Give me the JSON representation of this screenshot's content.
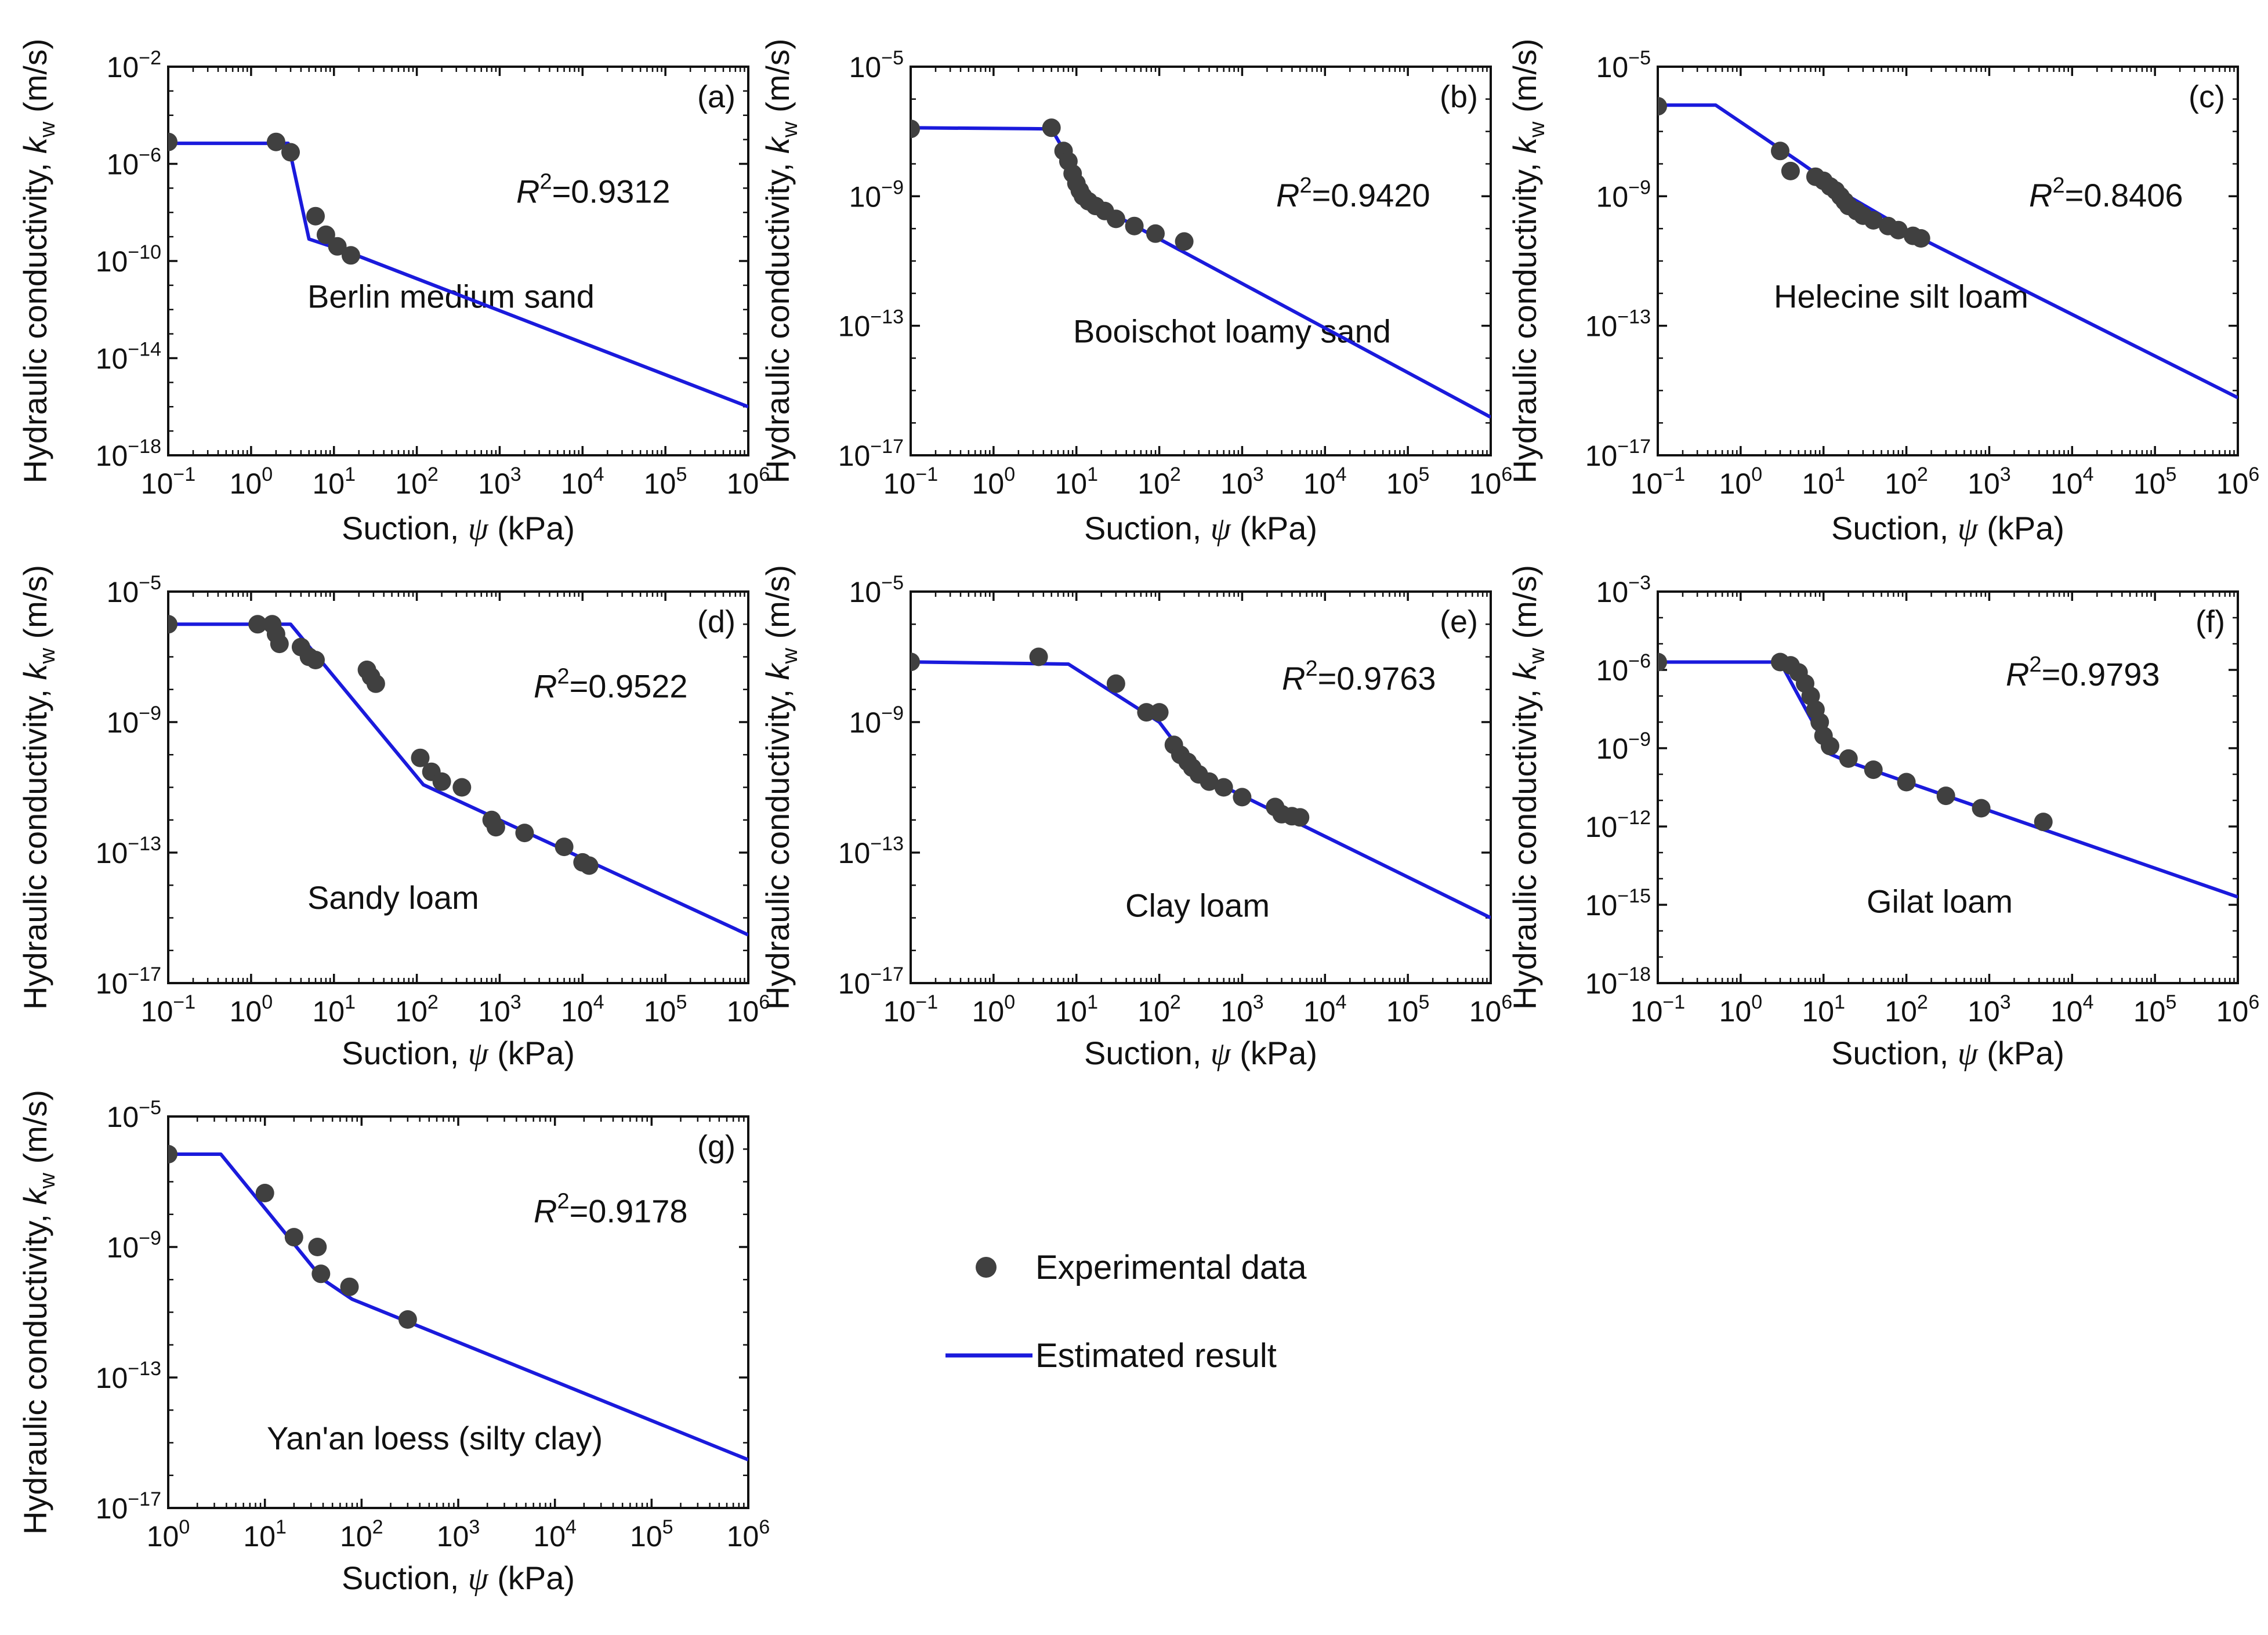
{
  "colors": {
    "points": "#404040",
    "line": "#1a1adc",
    "axis": "#111111",
    "background": "#ffffff"
  },
  "legend": {
    "points_label": "Experimental data",
    "line_label": "Estimated result",
    "position": "right of panel (g)"
  },
  "axes_text": {
    "x_label_prefix": "Suction,",
    "x_label_symbol": "ψ",
    "x_label_unit": "(kPa)",
    "y_label_prefix": "Hydraulic conductivity,",
    "y_label_symbol": "k",
    "y_label_sub": "w",
    "y_label_unit": "(m/s)",
    "r2_symbol": "R",
    "r2_sup": "2"
  },
  "chart_data": [
    {
      "type": "scatter",
      "panel": "(a)",
      "title": "Berlin medium sand",
      "r2": "0.9312",
      "x_scale": "log",
      "y_scale": "log",
      "xlim_exp": [
        -1,
        6
      ],
      "ylim_exp": [
        -18,
        -2
      ],
      "x_ticks_exp": [
        -1,
        0,
        1,
        2,
        3,
        4,
        5,
        6
      ],
      "y_ticks_exp": [
        -18,
        -14,
        -10,
        -6,
        -2
      ],
      "series": [
        {
          "name": "Experimental data",
          "kind": "points",
          "points": [
            [
              0.1,
              8e-06
            ],
            [
              2.0,
              8e-06
            ],
            [
              3.0,
              3e-06
            ],
            [
              6.0,
              7e-09
            ],
            [
              8.0,
              1.2e-09
            ],
            [
              11.0,
              4e-10
            ],
            [
              16.0,
              1.7e-10
            ]
          ]
        },
        {
          "name": "Estimated result",
          "kind": "line",
          "points": [
            [
              0.1,
              7e-06
            ],
            [
              2.8,
              7e-06
            ],
            [
              5.0,
              8e-10
            ],
            [
              14.0,
              2.5e-10
            ],
            [
              1000000,
              1e-16
            ]
          ]
        }
      ]
    },
    {
      "type": "scatter",
      "panel": "(b)",
      "title": "Booischot loamy sand",
      "r2": "0.9420",
      "x_scale": "log",
      "y_scale": "log",
      "xlim_exp": [
        -1,
        6
      ],
      "ylim_exp": [
        -17,
        -5
      ],
      "x_ticks_exp": [
        -1,
        0,
        1,
        2,
        3,
        4,
        5,
        6
      ],
      "y_ticks_exp": [
        -17,
        -13,
        -9,
        -5
      ],
      "series": [
        {
          "name": "Experimental data",
          "kind": "points",
          "points": [
            [
              0.1,
              1.2e-07
            ],
            [
              5.0,
              1.3e-07
            ],
            [
              7.0,
              2.5e-08
            ],
            [
              8.0,
              1.2e-08
            ],
            [
              9.0,
              5e-09
            ],
            [
              10.0,
              2.5e-09
            ],
            [
              11.0,
              1.5e-09
            ],
            [
              12.0,
              1e-09
            ],
            [
              14.0,
              7e-10
            ],
            [
              17.0,
              5e-10
            ],
            [
              22.0,
              3.5e-10
            ],
            [
              30.0,
              2e-10
            ],
            [
              50.0,
              1.2e-10
            ],
            [
              90.0,
              7e-11
            ],
            [
              200.0,
              4e-11
            ]
          ]
        },
        {
          "name": "Estimated result",
          "kind": "line",
          "points": [
            [
              0.1,
              1.3e-07
            ],
            [
              5.0,
              1.2e-07
            ],
            [
              8.0,
              1.5e-08
            ],
            [
              15.0,
              1e-09
            ],
            [
              30.0,
              2.5e-10
            ],
            [
              1000000,
              1.5e-16
            ]
          ]
        }
      ]
    },
    {
      "type": "scatter",
      "panel": "(c)",
      "title": "Helecine silt loam",
      "r2": "0.8406",
      "x_scale": "log",
      "y_scale": "log",
      "xlim_exp": [
        -1,
        6
      ],
      "ylim_exp": [
        -17,
        -5
      ],
      "x_ticks_exp": [
        -1,
        0,
        1,
        2,
        3,
        4,
        5,
        6
      ],
      "y_ticks_exp": [
        -17,
        -13,
        -9,
        -5
      ],
      "series": [
        {
          "name": "Experimental data",
          "kind": "points",
          "points": [
            [
              0.1,
              6e-07
            ],
            [
              3.0,
              2.5e-08
            ],
            [
              4.0,
              6e-09
            ],
            [
              8.0,
              4e-09
            ],
            [
              10.0,
              3e-09
            ],
            [
              12.0,
              2e-09
            ],
            [
              14.0,
              1.5e-09
            ],
            [
              16.0,
              1e-09
            ],
            [
              18.0,
              7e-10
            ],
            [
              20.0,
              5e-10
            ],
            [
              25.0,
              3.5e-10
            ],
            [
              30.0,
              2.5e-10
            ],
            [
              40.0,
              1.8e-10
            ],
            [
              60.0,
              1.2e-10
            ],
            [
              80.0,
              9e-11
            ],
            [
              120.0,
              6e-11
            ],
            [
              150.0,
              5e-11
            ]
          ]
        },
        {
          "name": "Estimated result",
          "kind": "line",
          "points": [
            [
              0.1,
              6.5e-07
            ],
            [
              0.5,
              6.5e-07
            ],
            [
              5.0,
              1.2e-08
            ],
            [
              20.0,
              1e-09
            ],
            [
              150.0,
              5e-11
            ],
            [
              1000000,
              6e-16
            ]
          ]
        }
      ]
    },
    {
      "type": "scatter",
      "panel": "(d)",
      "title": "Sandy loam",
      "r2": "0.9522",
      "x_scale": "log",
      "y_scale": "log",
      "xlim_exp": [
        -1,
        6
      ],
      "ylim_exp": [
        -17,
        -5
      ],
      "x_ticks_exp": [
        -1,
        0,
        1,
        2,
        3,
        4,
        5,
        6
      ],
      "y_ticks_exp": [
        -17,
        -13,
        -9,
        -5
      ],
      "series": [
        {
          "name": "Experimental data",
          "kind": "points",
          "points": [
            [
              0.1,
              1e-06
            ],
            [
              1.2,
              1e-06
            ],
            [
              1.8,
              1e-06
            ],
            [
              2.0,
              5e-07
            ],
            [
              2.2,
              2.5e-07
            ],
            [
              4.0,
              2e-07
            ],
            [
              5.0,
              1e-07
            ],
            [
              6.0,
              8e-08
            ],
            [
              25.0,
              4e-08
            ],
            [
              28.0,
              2.5e-08
            ],
            [
              32.0,
              1.5e-08
            ],
            [
              110.0,
              8e-11
            ],
            [
              150.0,
              3e-11
            ],
            [
              200.0,
              1.5e-11
            ],
            [
              350.0,
              1e-11
            ],
            [
              800.0,
              1e-12
            ],
            [
              900.0,
              6e-13
            ],
            [
              2000.0,
              4e-13
            ],
            [
              6000.0,
              1.5e-13
            ],
            [
              10000.0,
              5e-14
            ],
            [
              12000.0,
              4e-14
            ]
          ]
        },
        {
          "name": "Estimated result",
          "kind": "line",
          "points": [
            [
              0.1,
              1e-06
            ],
            [
              3.0,
              1e-06
            ],
            [
              120.0,
              1.2e-11
            ],
            [
              1000000,
              3e-16
            ]
          ]
        }
      ]
    },
    {
      "type": "scatter",
      "panel": "(e)",
      "title": "Clay loam",
      "r2": "0.9763",
      "x_scale": "log",
      "y_scale": "log",
      "xlim_exp": [
        -1,
        6
      ],
      "ylim_exp": [
        -17,
        -5
      ],
      "x_ticks_exp": [
        -1,
        0,
        1,
        2,
        3,
        4,
        5,
        6
      ],
      "y_ticks_exp": [
        -17,
        -13,
        -9,
        -5
      ],
      "series": [
        {
          "name": "Experimental data",
          "kind": "points",
          "points": [
            [
              0.1,
              7e-08
            ],
            [
              3.5,
              1e-07
            ],
            [
              30.0,
              1.5e-08
            ],
            [
              70.0,
              2e-09
            ],
            [
              100.0,
              2e-09
            ],
            [
              150.0,
              2e-10
            ],
            [
              180.0,
              1e-10
            ],
            [
              220.0,
              6e-11
            ],
            [
              250.0,
              4e-11
            ],
            [
              300.0,
              2.5e-11
            ],
            [
              400.0,
              1.5e-11
            ],
            [
              600.0,
              1e-11
            ],
            [
              1000.0,
              5e-12
            ],
            [
              2500.0,
              2.5e-12
            ],
            [
              3000.0,
              1.5e-12
            ],
            [
              4000.0,
              1.3e-12
            ],
            [
              5000.0,
              1.2e-12
            ]
          ]
        },
        {
          "name": "Estimated result",
          "kind": "line",
          "points": [
            [
              0.1,
              7e-08
            ],
            [
              8.0,
              6e-08
            ],
            [
              100.0,
              1e-09
            ],
            [
              300.0,
              2.5e-11
            ],
            [
              1000000,
              1e-15
            ]
          ]
        }
      ]
    },
    {
      "type": "scatter",
      "panel": "(f)",
      "title": "Gilat loam",
      "r2": "0.9793",
      "x_scale": "log",
      "y_scale": "log",
      "xlim_exp": [
        -1,
        6
      ],
      "ylim_exp": [
        -18,
        -3
      ],
      "x_ticks_exp": [
        -1,
        0,
        1,
        2,
        3,
        4,
        5,
        6
      ],
      "y_ticks_exp": [
        -18,
        -15,
        -12,
        -9,
        -6,
        -3
      ],
      "series": [
        {
          "name": "Experimental data",
          "kind": "points",
          "points": [
            [
              0.1,
              2e-06
            ],
            [
              3.0,
              2e-06
            ],
            [
              4.0,
              1.5e-06
            ],
            [
              5.0,
              8e-07
            ],
            [
              6.0,
              3e-07
            ],
            [
              7.0,
              1e-07
            ],
            [
              8.0,
              3e-08
            ],
            [
              9.0,
              1e-08
            ],
            [
              10.0,
              3e-09
            ],
            [
              12.0,
              1.2e-09
            ],
            [
              20.0,
              4e-10
            ],
            [
              40.0,
              1.5e-10
            ],
            [
              100.0,
              5e-11
            ],
            [
              300.0,
              1.5e-11
            ],
            [
              800.0,
              5e-12
            ],
            [
              4500.0,
              1.5e-12
            ]
          ]
        },
        {
          "name": "Estimated result",
          "kind": "line",
          "points": [
            [
              0.1,
              2e-06
            ],
            [
              3.0,
              2e-06
            ],
            [
              12.0,
              6e-10
            ],
            [
              20.0,
              3e-10
            ],
            [
              1000000,
              2e-15
            ]
          ]
        }
      ]
    },
    {
      "type": "scatter",
      "panel": "(g)",
      "title": "Yan'an loess (silty clay)",
      "r2": "0.9178",
      "x_scale": "log",
      "y_scale": "log",
      "xlim_exp": [
        0,
        6
      ],
      "ylim_exp": [
        -17,
        -5
      ],
      "x_ticks_exp": [
        0,
        1,
        2,
        3,
        4,
        5,
        6
      ],
      "y_ticks_exp": [
        -17,
        -13,
        -9,
        -5
      ],
      "series": [
        {
          "name": "Experimental data",
          "kind": "points",
          "points": [
            [
              1.0,
              7e-07
            ],
            [
              10.0,
              4.5e-08
            ],
            [
              20.0,
              2e-09
            ],
            [
              35.0,
              1e-09
            ],
            [
              38.0,
              1.5e-10
            ],
            [
              75.0,
              6e-11
            ],
            [
              300.0,
              6e-12
            ]
          ]
        },
        {
          "name": "Estimated result",
          "kind": "line",
          "points": [
            [
              1.0,
              7e-07
            ],
            [
              3.5,
              7e-07
            ],
            [
              40.0,
              1e-10
            ],
            [
              80.0,
              2.5e-11
            ],
            [
              1000000,
              3e-16
            ]
          ]
        }
      ]
    }
  ]
}
